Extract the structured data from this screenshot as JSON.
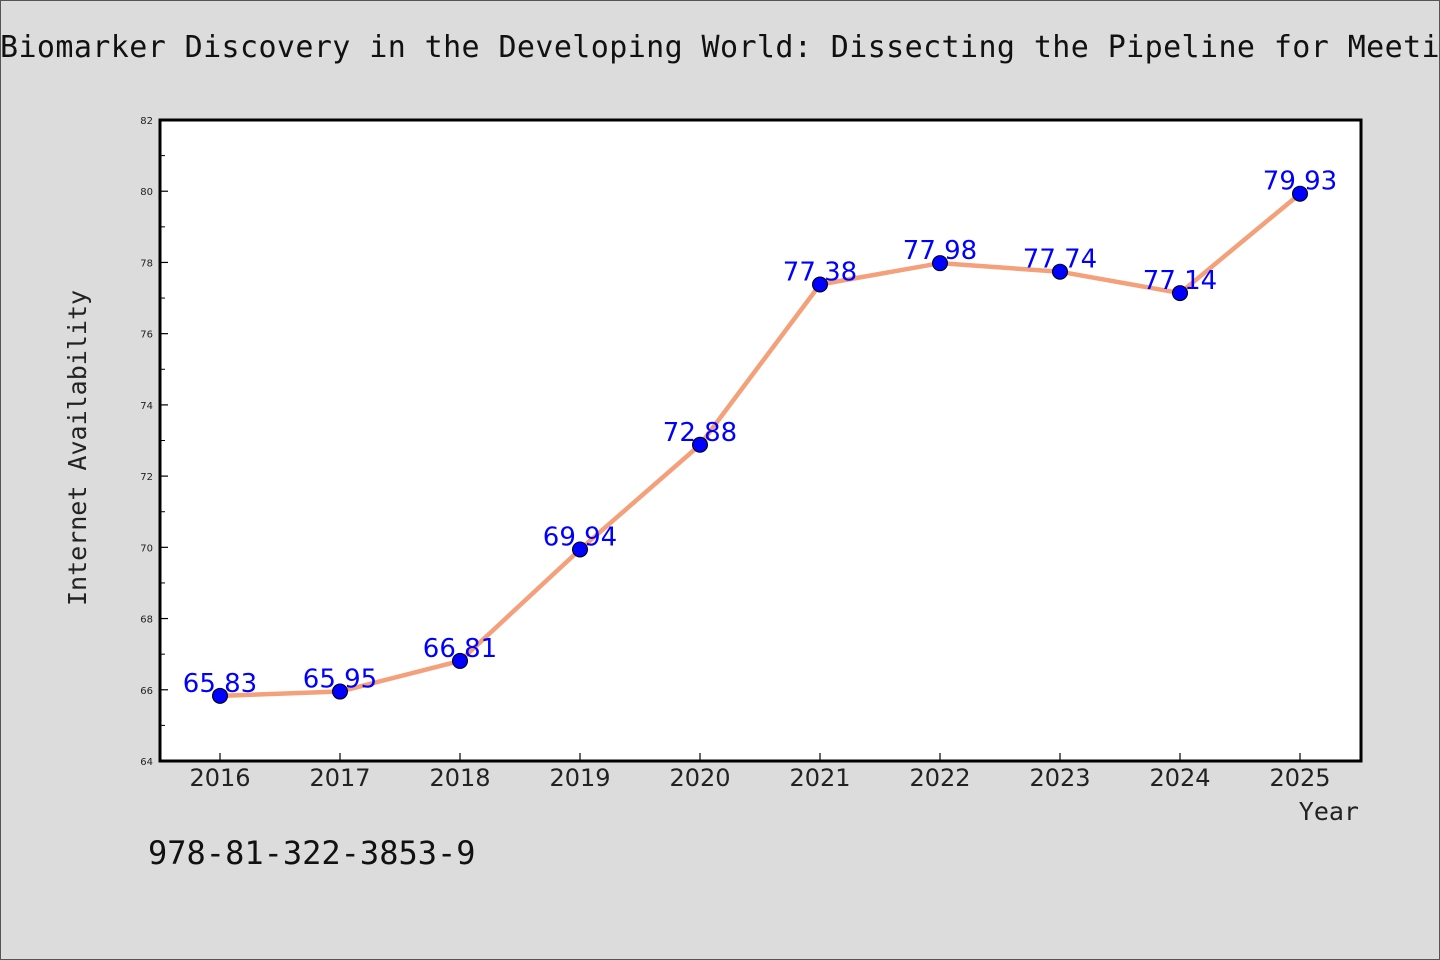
{
  "chart_data": {
    "type": "line",
    "title": "Biomarker Discovery in the Developing World: Dissecting the Pipeline for Meeting",
    "xlabel": "Year",
    "ylabel": "Internet Availability",
    "categories": [
      "2016",
      "2017",
      "2018",
      "2019",
      "2020",
      "2021",
      "2022",
      "2023",
      "2024",
      "2025"
    ],
    "series": [
      {
        "values": [
          65.83,
          65.95,
          66.81,
          69.94,
          72.88,
          77.38,
          77.98,
          77.74,
          77.14,
          79.93
        ]
      }
    ],
    "data_labels": [
      "65.83",
      "65.95",
      "66.81",
      "69.94",
      "72.88",
      "77.38",
      "77.98",
      "77.74",
      "77.14",
      "79.93"
    ],
    "ylim": [
      64,
      82
    ],
    "yticks": [
      "64",
      "66",
      "68",
      "70",
      "72",
      "74",
      "76",
      "78",
      "80",
      "82"
    ],
    "grid": false,
    "line_color": "#f4a07a",
    "marker_color": "#0000ff",
    "label_color": "#0000ff"
  },
  "footer": {
    "isbn": "978-81-322-3853-9"
  }
}
